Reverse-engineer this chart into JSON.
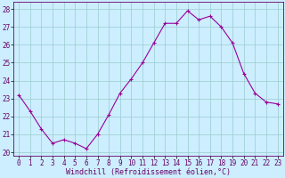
{
  "x": [
    0,
    1,
    2,
    3,
    4,
    5,
    6,
    7,
    8,
    9,
    10,
    11,
    12,
    13,
    14,
    15,
    16,
    17,
    18,
    19,
    20,
    21,
    22,
    23
  ],
  "y": [
    23.2,
    22.3,
    21.3,
    20.5,
    20.7,
    20.5,
    20.2,
    21.0,
    22.1,
    23.3,
    24.1,
    25.0,
    26.1,
    27.2,
    27.2,
    27.9,
    27.4,
    27.6,
    27.0,
    26.1,
    24.4,
    23.3,
    22.8,
    22.7
  ],
  "line_color": "#990099",
  "marker": "+",
  "marker_color": "#990099",
  "bg_color": "#cceeff",
  "grid_color": "#99cccc",
  "xlabel": "Windchill (Refroidissement éolien,°C)",
  "xlabel_color": "#660066",
  "xlabel_fontsize": 6.0,
  "tick_color": "#660066",
  "tick_fontsize": 5.5,
  "ylim": [
    19.8,
    28.4
  ],
  "xlim": [
    -0.5,
    23.5
  ],
  "yticks": [
    20,
    21,
    22,
    23,
    24,
    25,
    26,
    27,
    28
  ],
  "xticks": [
    0,
    1,
    2,
    3,
    4,
    5,
    6,
    7,
    8,
    9,
    10,
    11,
    12,
    13,
    14,
    15,
    16,
    17,
    18,
    19,
    20,
    21,
    22,
    23
  ]
}
